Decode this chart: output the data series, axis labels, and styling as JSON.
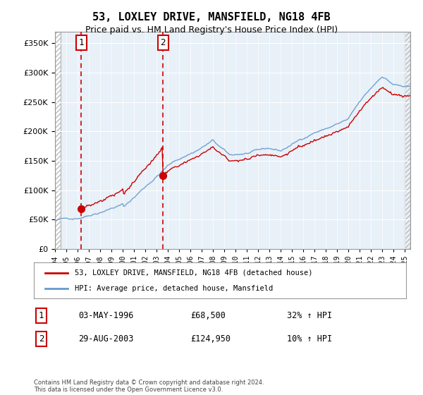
{
  "title": "53, LOXLEY DRIVE, MANSFIELD, NG18 4FB",
  "subtitle": "Price paid vs. HM Land Registry's House Price Index (HPI)",
  "legend_line1": "53, LOXLEY DRIVE, MANSFIELD, NG18 4FB (detached house)",
  "legend_line2": "HPI: Average price, detached house, Mansfield",
  "sale1_date": "03-MAY-1996",
  "sale1_price": 68500,
  "sale1_label": "1",
  "sale1_note": "32% ↑ HPI",
  "sale2_date": "29-AUG-2003",
  "sale2_price": 124950,
  "sale2_label": "2",
  "sale2_note": "10% ↑ HPI",
  "footer": "Contains HM Land Registry data © Crown copyright and database right 2024.\nThis data is licensed under the Open Government Licence v3.0.",
  "hpi_color": "#6699cc",
  "price_color": "#cc0000",
  "sale_marker_color": "#cc0000",
  "dashed_line_color": "#cc0000",
  "hatch_color": "#cccccc",
  "ylim": [
    0,
    370000
  ],
  "yticks": [
    0,
    50000,
    100000,
    150000,
    200000,
    250000,
    300000,
    350000
  ]
}
